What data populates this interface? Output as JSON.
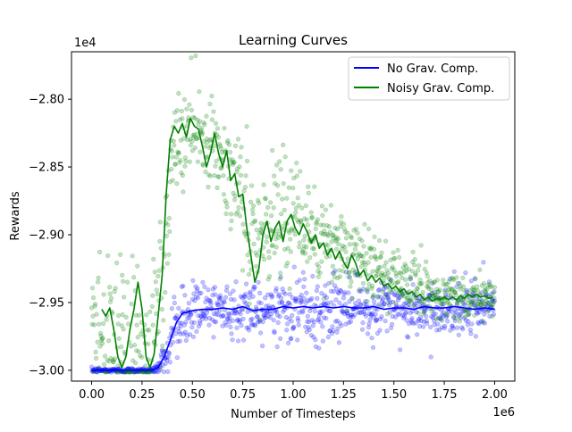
{
  "chart_data": {
    "type": "line",
    "title": "Learning Curves",
    "xlabel": "Number of Timesteps",
    "ylabel": "Rewards",
    "x_offset_label": "1e6",
    "y_offset_label": "1e4",
    "xlim": [
      -0.1,
      2.1
    ],
    "ylim": [
      -3.008,
      -2.765
    ],
    "x_ticks": [
      {
        "value": 0.0,
        "label": "0.00"
      },
      {
        "value": 0.25,
        "label": "0.25"
      },
      {
        "value": 0.5,
        "label": "0.50"
      },
      {
        "value": 0.75,
        "label": "0.75"
      },
      {
        "value": 1.0,
        "label": "1.00"
      },
      {
        "value": 1.25,
        "label": "1.25"
      },
      {
        "value": 1.5,
        "label": "1.50"
      },
      {
        "value": 1.75,
        "label": "1.75"
      },
      {
        "value": 2.0,
        "label": "2.00"
      }
    ],
    "y_ticks": [
      {
        "value": -3.0,
        "label": "−3.00"
      },
      {
        "value": -2.95,
        "label": "−2.95"
      },
      {
        "value": -2.9,
        "label": "−2.90"
      },
      {
        "value": -2.85,
        "label": "−2.85"
      },
      {
        "value": -2.8,
        "label": "−2.80"
      }
    ],
    "grid": false,
    "legend_position": "top-right",
    "series": [
      {
        "name": "No Grav. Comp.",
        "color": "#0000ff",
        "mean_line": {
          "x": [
            0.0,
            0.1,
            0.2,
            0.3,
            0.33,
            0.36,
            0.39,
            0.42,
            0.45,
            0.5,
            0.55,
            0.6,
            0.65,
            0.7,
            0.75,
            0.8,
            0.85,
            0.9,
            0.95,
            1.0,
            1.05,
            1.1,
            1.15,
            1.2,
            1.25,
            1.3,
            1.35,
            1.4,
            1.45,
            1.5,
            1.55,
            1.6,
            1.65,
            1.7,
            1.75,
            1.8,
            1.85,
            1.9,
            1.95,
            2.0
          ],
          "y": [
            -3.0,
            -3.0,
            -3.0,
            -3.0,
            -2.998,
            -2.99,
            -2.978,
            -2.965,
            -2.958,
            -2.956,
            -2.955,
            -2.955,
            -2.954,
            -2.955,
            -2.953,
            -2.956,
            -2.955,
            -2.955,
            -2.953,
            -2.954,
            -2.953,
            -2.954,
            -2.953,
            -2.954,
            -2.953,
            -2.954,
            -2.954,
            -2.953,
            -2.955,
            -2.954,
            -2.954,
            -2.955,
            -2.953,
            -2.954,
            -2.954,
            -2.953,
            -2.954,
            -2.955,
            -2.954,
            -2.955
          ]
        },
        "scatter_band": {
          "x": [
            0.0,
            0.3,
            0.33,
            0.36,
            0.4,
            0.45,
            0.5,
            0.75,
            1.0,
            1.5,
            2.0
          ],
          "center": [
            -3.0,
            -3.0,
            -2.998,
            -2.99,
            -2.975,
            -2.962,
            -2.956,
            -2.954,
            -2.954,
            -2.954,
            -2.955
          ],
          "spread": [
            0.001,
            0.001,
            0.003,
            0.007,
            0.01,
            0.011,
            0.011,
            0.013,
            0.012,
            0.011,
            0.011
          ]
        },
        "point_count": 900
      },
      {
        "name": "Noisy Grav. Comp.",
        "color": "#008000",
        "mean_line": {
          "x": [
            0.05,
            0.07,
            0.09,
            0.11,
            0.13,
            0.15,
            0.17,
            0.19,
            0.21,
            0.23,
            0.25,
            0.27,
            0.29,
            0.31,
            0.33,
            0.35,
            0.37,
            0.39,
            0.41,
            0.43,
            0.45,
            0.47,
            0.49,
            0.51,
            0.53,
            0.55,
            0.57,
            0.59,
            0.61,
            0.63,
            0.65,
            0.67,
            0.69,
            0.71,
            0.73,
            0.75,
            0.77,
            0.79,
            0.81,
            0.83,
            0.85,
            0.87,
            0.89,
            0.91,
            0.93,
            0.95,
            0.97,
            0.99,
            1.01,
            1.03,
            1.05,
            1.07,
            1.09,
            1.11,
            1.13,
            1.15,
            1.17,
            1.19,
            1.21,
            1.23,
            1.25,
            1.27,
            1.29,
            1.31,
            1.33,
            1.35,
            1.37,
            1.39,
            1.41,
            1.43,
            1.45,
            1.47,
            1.49,
            1.51,
            1.53,
            1.55,
            1.57,
            1.59,
            1.61,
            1.63,
            1.65,
            1.67,
            1.69,
            1.71,
            1.73,
            1.75,
            1.77,
            1.79,
            1.81,
            1.83,
            1.85,
            1.87,
            1.89,
            1.91,
            1.93,
            1.95,
            1.97,
            1.99
          ],
          "y": [
            -2.955,
            -2.96,
            -2.954,
            -2.97,
            -2.99,
            -2.998,
            -2.99,
            -2.97,
            -2.955,
            -2.935,
            -2.955,
            -2.99,
            -2.998,
            -2.988,
            -2.96,
            -2.93,
            -2.87,
            -2.83,
            -2.82,
            -2.825,
            -2.818,
            -2.828,
            -2.814,
            -2.82,
            -2.822,
            -2.835,
            -2.85,
            -2.84,
            -2.825,
            -2.84,
            -2.85,
            -2.838,
            -2.86,
            -2.855,
            -2.872,
            -2.87,
            -2.895,
            -2.915,
            -2.935,
            -2.925,
            -2.9,
            -2.89,
            -2.905,
            -2.895,
            -2.89,
            -2.905,
            -2.89,
            -2.885,
            -2.895,
            -2.9,
            -2.892,
            -2.898,
            -2.906,
            -2.9,
            -2.91,
            -2.906,
            -2.915,
            -2.91,
            -2.918,
            -2.912,
            -2.92,
            -2.925,
            -2.915,
            -2.921,
            -2.93,
            -2.926,
            -2.934,
            -2.93,
            -2.935,
            -2.932,
            -2.938,
            -2.936,
            -2.94,
            -2.938,
            -2.942,
            -2.94,
            -2.944,
            -2.942,
            -2.946,
            -2.944,
            -2.948,
            -2.946,
            -2.949,
            -2.947,
            -2.948,
            -2.946,
            -2.948,
            -2.946,
            -2.948,
            -2.945,
            -2.947,
            -2.944,
            -2.946,
            -2.944,
            -2.946,
            -2.945,
            -2.947,
            -2.946
          ]
        },
        "scatter_band": {
          "x": [
            0.0,
            0.1,
            0.2,
            0.3,
            0.35,
            0.4,
            0.5,
            0.6,
            0.7,
            0.8,
            0.9,
            1.0,
            1.25,
            1.5,
            1.75,
            2.0
          ],
          "center": [
            -2.96,
            -2.975,
            -2.98,
            -2.985,
            -2.93,
            -2.84,
            -2.82,
            -2.835,
            -2.86,
            -2.9,
            -2.895,
            -2.89,
            -2.913,
            -2.933,
            -2.945,
            -2.947
          ],
          "spread": [
            0.03,
            0.035,
            0.035,
            0.03,
            0.04,
            0.025,
            0.02,
            0.02,
            0.025,
            0.025,
            0.022,
            0.02,
            0.016,
            0.013,
            0.01,
            0.009
          ]
        },
        "point_count": 900
      }
    ]
  }
}
